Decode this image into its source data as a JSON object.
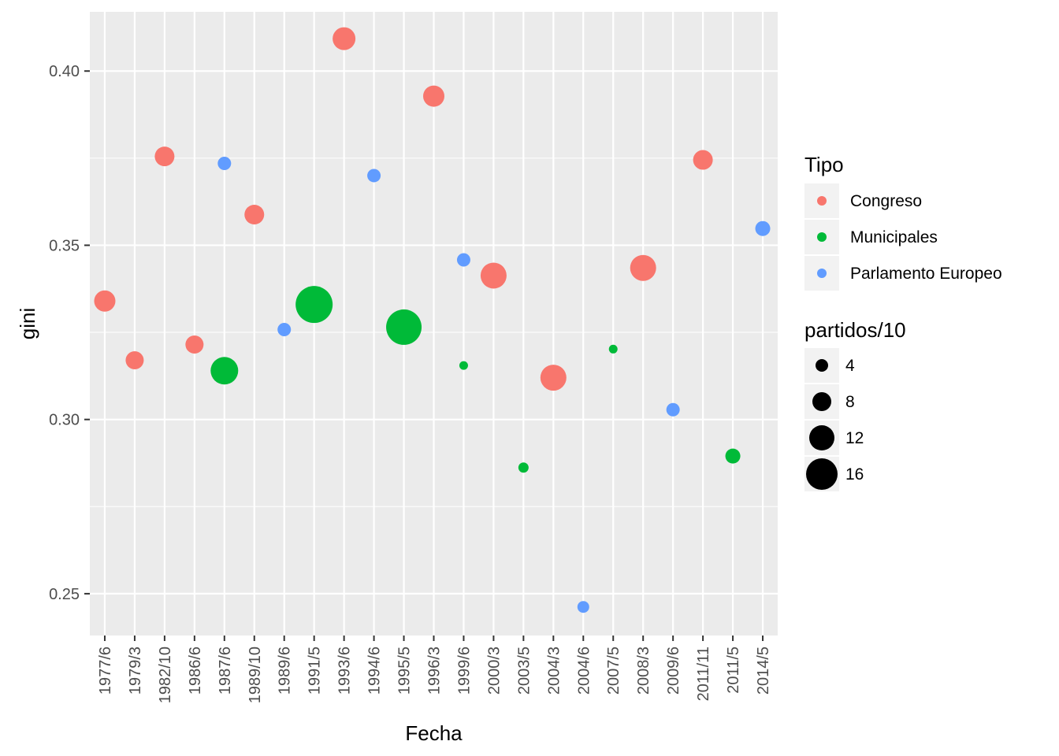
{
  "chart_data": {
    "type": "scatter",
    "xlabel": "Fecha",
    "ylabel": "gini",
    "ylim": [
      0.238,
      0.417
    ],
    "yticks": [
      0.25,
      0.3,
      0.35,
      0.4
    ],
    "ytick_labels": [
      "0.25",
      "0.30",
      "0.35",
      "0.40"
    ],
    "categories": [
      "1977/6",
      "1979/3",
      "1982/10",
      "1986/6",
      "1987/6",
      "1989/10",
      "1989/6",
      "1991/5",
      "1993/6",
      "1994/6",
      "1995/5",
      "1996/3",
      "1999/6",
      "2000/3",
      "2003/5",
      "2004/3",
      "2004/6",
      "2007/5",
      "2008/3",
      "2009/6",
      "2011/11",
      "2011/5",
      "2014/5"
    ],
    "grid": true,
    "legend_position": "right",
    "colors": {
      "Congreso": "#F8766D",
      "Municipales": "#00BA38",
      "Parlamento Europeo": "#619CFF",
      "panel_background": "#EBEBEB",
      "grid": "#FFFFFF"
    },
    "color_legend": {
      "title": "Tipo",
      "entries": [
        "Congreso",
        "Municipales",
        "Parlamento Europeo"
      ]
    },
    "size_legend": {
      "title": "partidos/10",
      "values": [
        4,
        8,
        12,
        16
      ],
      "labels": [
        "4",
        "8",
        "12",
        "16"
      ]
    },
    "points": [
      {
        "x": "1977/6",
        "y": 0.334,
        "tipo": "Congreso",
        "size": 10
      },
      {
        "x": "1979/3",
        "y": 0.317,
        "tipo": "Congreso",
        "size": 8
      },
      {
        "x": "1982/10",
        "y": 0.3755,
        "tipo": "Congreso",
        "size": 9
      },
      {
        "x": "1986/6",
        "y": 0.3215,
        "tipo": "Congreso",
        "size": 8
      },
      {
        "x": "1987/6",
        "y": 0.3735,
        "tipo": "Parlamento Europeo",
        "size": 5
      },
      {
        "x": "1987/6",
        "y": 0.314,
        "tipo": "Municipales",
        "size": 14
      },
      {
        "x": "1989/10",
        "y": 0.3588,
        "tipo": "Congreso",
        "size": 9
      },
      {
        "x": "1989/6",
        "y": 0.3258,
        "tipo": "Parlamento Europeo",
        "size": 5
      },
      {
        "x": "1991/5",
        "y": 0.333,
        "tipo": "Municipales",
        "size": 20
      },
      {
        "x": "1993/6",
        "y": 0.4093,
        "tipo": "Congreso",
        "size": 11
      },
      {
        "x": "1994/6",
        "y": 0.37,
        "tipo": "Parlamento Europeo",
        "size": 5
      },
      {
        "x": "1995/5",
        "y": 0.3265,
        "tipo": "Municipales",
        "size": 19
      },
      {
        "x": "1996/3",
        "y": 0.3928,
        "tipo": "Congreso",
        "size": 10
      },
      {
        "x": "1999/6",
        "y": 0.3458,
        "tipo": "Parlamento Europeo",
        "size": 5
      },
      {
        "x": "1999/6",
        "y": 0.3155,
        "tipo": "Municipales",
        "size": 2
      },
      {
        "x": "2000/3",
        "y": 0.3413,
        "tipo": "Congreso",
        "size": 13
      },
      {
        "x": "2003/5",
        "y": 0.2862,
        "tipo": "Municipales",
        "size": 3
      },
      {
        "x": "2004/3",
        "y": 0.312,
        "tipo": "Congreso",
        "size": 13
      },
      {
        "x": "2004/6",
        "y": 0.2462,
        "tipo": "Parlamento Europeo",
        "size": 4
      },
      {
        "x": "2007/5",
        "y": 0.3202,
        "tipo": "Municipales",
        "size": 2
      },
      {
        "x": "2008/3",
        "y": 0.3435,
        "tipo": "Congreso",
        "size": 13
      },
      {
        "x": "2009/6",
        "y": 0.3028,
        "tipo": "Parlamento Europeo",
        "size": 5
      },
      {
        "x": "2011/11",
        "y": 0.3745,
        "tipo": "Congreso",
        "size": 9
      },
      {
        "x": "2011/5",
        "y": 0.2895,
        "tipo": "Municipales",
        "size": 6
      },
      {
        "x": "2014/5",
        "y": 0.3548,
        "tipo": "Parlamento Europeo",
        "size": 6
      }
    ]
  }
}
